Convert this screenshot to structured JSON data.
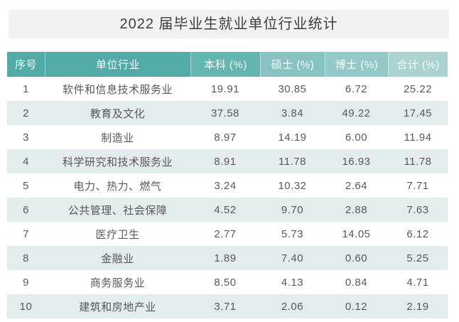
{
  "title": "2022 届毕业生就业单位行业统计",
  "chart_data": {
    "type": "table",
    "title": "2022 届毕业生就业单位行业统计",
    "columns": [
      "序号",
      "单位行业",
      "本科 (%)",
      "硕士 (%)",
      "博士 (%)",
      "合计 (%)"
    ],
    "rows": [
      [
        "1",
        "软件和信息技术服务业",
        "19.91",
        "30.85",
        "6.72",
        "25.22"
      ],
      [
        "2",
        "教育及文化",
        "37.58",
        "3.84",
        "49.22",
        "17.45"
      ],
      [
        "3",
        "制造业",
        "8.97",
        "14.19",
        "6.00",
        "11.94"
      ],
      [
        "4",
        "科学研究和技术服务业",
        "8.91",
        "11.78",
        "16.93",
        "11.78"
      ],
      [
        "5",
        "电力、热力、燃气",
        "3.24",
        "10.32",
        "2.64",
        "7.71"
      ],
      [
        "6",
        "公共管理、社会保障",
        "4.52",
        "9.70",
        "2.88",
        "7.63"
      ],
      [
        "7",
        "医疗卫生",
        "2.77",
        "5.73",
        "14.05",
        "6.12"
      ],
      [
        "8",
        "金融业",
        "1.89",
        "7.40",
        "0.60",
        "5.25"
      ],
      [
        "9",
        "商务服务业",
        "8.50",
        "4.13",
        "0.84",
        "4.71"
      ],
      [
        "10",
        "建筑和房地产业",
        "3.71",
        "2.06",
        "0.12",
        "2.19"
      ]
    ],
    "layout": {
      "header_gradient": "left-darkest to right-lightest",
      "row_striping": "odd white / even pale teal"
    }
  },
  "colors": {
    "title_bar_bg": "#F2F2F2",
    "title_text": "#3E3E3E",
    "header_bg_no_industry": "#52ABA7",
    "header_bg_bachelor": "#65B5B1",
    "header_bg_master": "#87C4C1",
    "header_bg_doctor": "#93C9C6",
    "header_bg_total": "#ABD3D1",
    "header_text": "#FAFDFD",
    "band_row_bg": "#E3EDEB",
    "body_text": "#595959"
  }
}
